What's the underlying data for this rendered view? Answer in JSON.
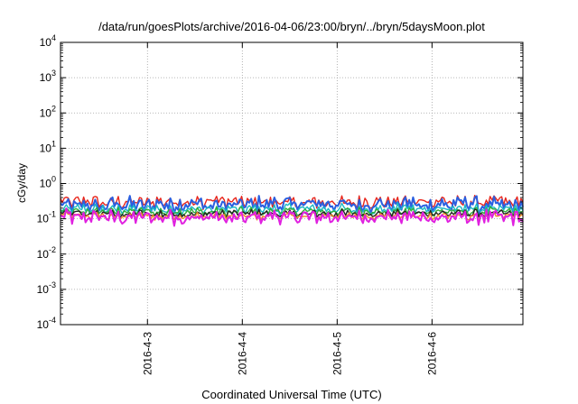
{
  "chart_data": {
    "type": "line",
    "title": "/data/run/goesPlots/archive/2016-04-06/23:00/bryn/../bryn/5daysMoon.plot",
    "xlabel": "Coordinated Universal Time (UTC)",
    "ylabel": "cGy/day",
    "yscale": "log",
    "ylim": [
      0.0001,
      10000
    ],
    "xlim": [
      "2016-04-02T02:00",
      "2016-04-06T23:00"
    ],
    "grid": true,
    "legend": "none",
    "y_tick_labels": [
      {
        "base": "10",
        "exp": "-4",
        "value": 0.0001
      },
      {
        "base": "10",
        "exp": "-3",
        "value": 0.001
      },
      {
        "base": "10",
        "exp": "-2",
        "value": 0.01
      },
      {
        "base": "10",
        "exp": "-1",
        "value": 0.1
      },
      {
        "base": "10",
        "exp": "0",
        "value": 1
      },
      {
        "base": "10",
        "exp": "1",
        "value": 10
      },
      {
        "base": "10",
        "exp": "2",
        "value": 100
      },
      {
        "base": "10",
        "exp": "3",
        "value": 1000
      },
      {
        "base": "10",
        "exp": "4",
        "value": 10000
      }
    ],
    "x_ticks": [
      {
        "label": "2016-4-3",
        "date": "2016-04-03"
      },
      {
        "label": "2016-4-4",
        "date": "2016-04-04"
      },
      {
        "label": "2016-4-5",
        "date": "2016-04-05"
      },
      {
        "label": "2016-4-6",
        "date": "2016-04-06"
      }
    ],
    "series": [
      {
        "color": "#e8261c",
        "level": 0.3,
        "spread": 0.22
      },
      {
        "color": "#2a5fe0",
        "level": 0.25,
        "spread": 0.28
      },
      {
        "color": "#1bb8c4",
        "level": 0.19,
        "spread": 0.18
      },
      {
        "color": "#2fae3a",
        "level": 0.16,
        "spread": 0.16
      },
      {
        "color": "#222222",
        "level": 0.14,
        "spread": 0.14
      },
      {
        "color": "#f08a2a",
        "level": 0.12,
        "spread": 0.14
      },
      {
        "color": "#e020e0",
        "level": 0.11,
        "spread": 0.26
      }
    ]
  }
}
